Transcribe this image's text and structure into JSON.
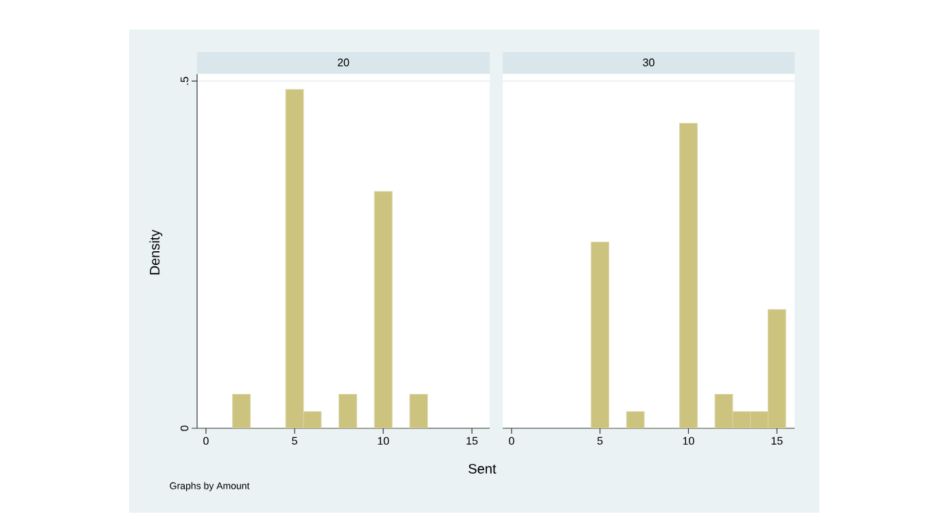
{
  "chart_data": [
    {
      "type": "histogram",
      "title": "20",
      "ylabel": "Density",
      "xlabel": "Sent",
      "annotations": [
        "Graphs by Amount"
      ],
      "color": "#ccc37f",
      "bins": [
        1.5,
        2.5,
        3.5,
        4.5,
        5.5,
        6.5,
        7.5,
        8.5,
        9.5,
        10.5,
        11.5,
        12.5
      ],
      "values": [
        0.049,
        0,
        0,
        0.488,
        0.024,
        0,
        0.049,
        0,
        0.341,
        0,
        0.049
      ],
      "xlim": [
        -0.5,
        16
      ],
      "xticks": [
        0,
        5,
        10,
        15
      ],
      "ylim": [
        0,
        0.51
      ],
      "yticks": [
        0,
        {
          "value": 0.5,
          "label": ".5"
        }
      ],
      "grid": "y"
    },
    {
      "type": "histogram",
      "title": "30",
      "color": "#ccc37f",
      "bins": [
        4.5,
        5.5,
        6.5,
        7.5,
        8.5,
        9.5,
        10.5,
        11.5,
        12.5,
        13.5,
        14.5,
        15.5
      ],
      "values": [
        0.268,
        0,
        0.024,
        0,
        0,
        0.439,
        0,
        0.049,
        0.024,
        0.024,
        0.171
      ],
      "xlim": [
        -0.5,
        16
      ],
      "xticks": [
        0,
        5,
        10,
        15
      ],
      "ylim": [
        0,
        0.51
      ],
      "yticks": [
        0,
        0.5
      ],
      "grid": "y",
      "tick_labels": "x"
    }
  ]
}
